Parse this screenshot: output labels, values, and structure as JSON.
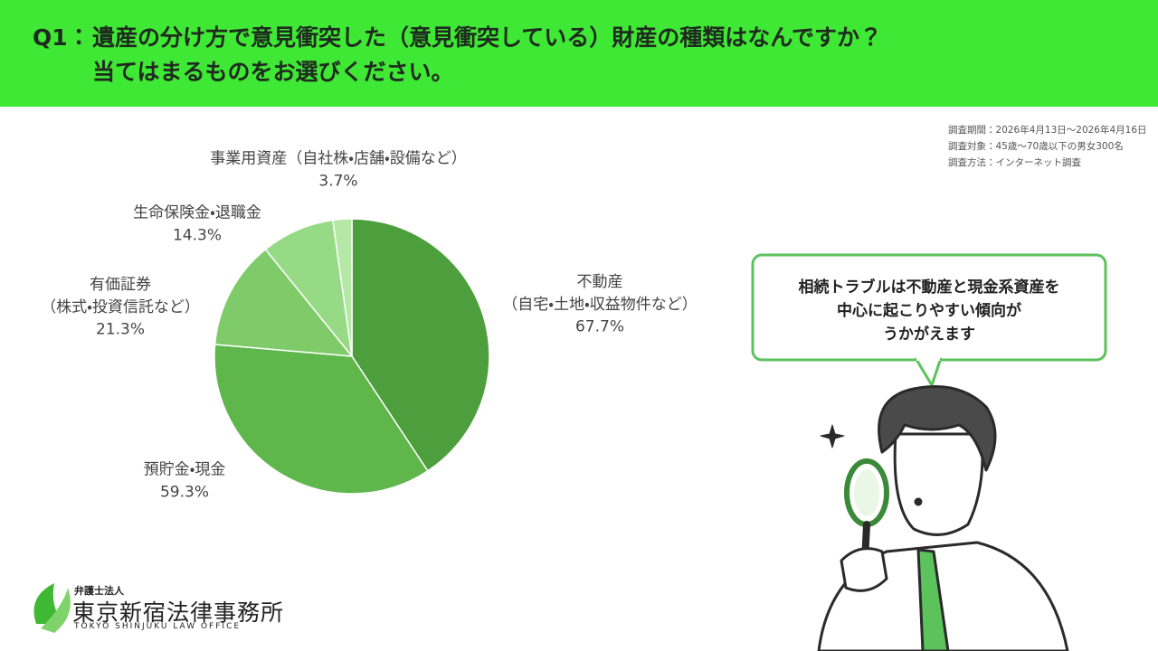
{
  "header": {
    "label": "Q1：",
    "line1": "遺産の分け方で意見衝突した（意見衝突している）財産の種類はなんですか？",
    "line2": "当てはまるものをお選びください。"
  },
  "survey": [
    "調査期間：2026年4月13日〜2026年4月16日",
    "調査対象：45歳〜70歳以下の男女300名",
    "調査方法：インターネット調査"
  ],
  "chart_data": {
    "type": "pie",
    "categories": [
      "不動産\n（自宅・土地・収益物件など）",
      "預貯金・現金",
      "有価証券\n（株式・投資信託など）",
      "生命保険金・退職金",
      "事業用資産（自社株・店舗・設備など）"
    ],
    "values": [
      67.7,
      59.3,
      21.3,
      14.3,
      3.7
    ],
    "value_labels": [
      "67.7%",
      "59.3%",
      "21.3%",
      "14.3%",
      "3.7%"
    ],
    "colors": [
      "#4d9f3d",
      "#5fb74c",
      "#7fcb69",
      "#97da85",
      "#b5e8a6"
    ]
  },
  "bubble": [
    "相続トラブルは不動産と現金系資産を",
    "中心に起こりやすい傾向が",
    "うかがえます"
  ],
  "logo": {
    "sub": "弁護士法人",
    "name": "東京新宿法律事務所",
    "english": "TOKYO SHINJUKU LAW OFFICE"
  }
}
